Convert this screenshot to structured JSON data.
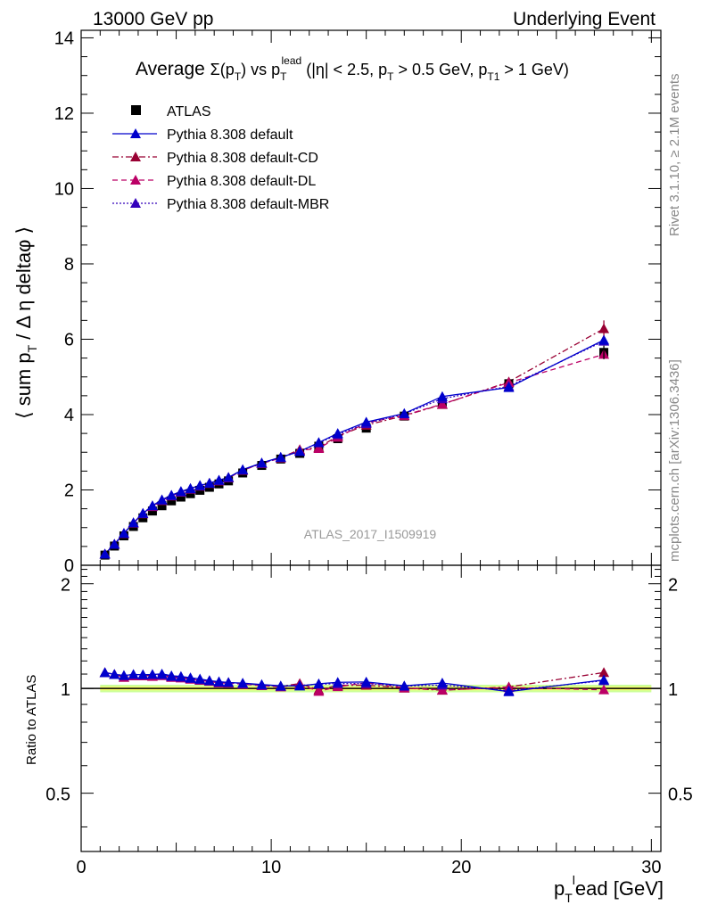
{
  "header": {
    "left": "13000 GeV pp",
    "right": "Underlying Event"
  },
  "side_labels": {
    "rivet": "Rivet 3.1.10, ≥ 2.1M events",
    "mcplots": "mcplots.cern.ch [arXiv:1306.3436]"
  },
  "watermark": "ATLAS_2017_I1509919",
  "colors": {
    "atlas": "#000000",
    "default": "#0000cc",
    "cd": "#990033",
    "dl": "#bb0066",
    "mbr": "#3300bb",
    "band_inner": "#ffff66",
    "band_outer": "#ccff99"
  },
  "chart_data": [
    {
      "type": "scatter",
      "title": "Average Σ(pT) vs pT^lead (|η| < 2.5, pT > 0.5 GeV, pT1 > 1 GeV)",
      "title_parts": {
        "p1": "Average ",
        "p2": "Σ(p",
        "p3": "T",
        "p4": ") vs p",
        "p5": "T",
        "p6": "lead",
        "p7": " (|η| < 2.5, p",
        "p8": "T",
        "p9": " > 0.5 GeV, p",
        "p10": "T1",
        "p11": " > 1 GeV)"
      },
      "ylabel": "⟨ sum pT / Δη deltaφ ⟩",
      "ylabel_parts": {
        "a": "⟨ sum p",
        "b": "T",
        "c": " / Δ η deltaφ ⟩"
      },
      "xlim": [
        0,
        30.5
      ],
      "ylim": [
        0,
        14.2
      ],
      "yticks": [
        0,
        2,
        4,
        6,
        8,
        10,
        12,
        14
      ],
      "legend_position": "top-left",
      "x": [
        1.25,
        1.75,
        2.25,
        2.75,
        3.25,
        3.75,
        4.25,
        4.75,
        5.25,
        5.75,
        6.25,
        6.75,
        7.25,
        7.75,
        8.5,
        9.5,
        10.5,
        11.5,
        12.5,
        13.5,
        15.0,
        17.0,
        19.0,
        22.5,
        27.5
      ],
      "series": [
        {
          "name": "ATLAS",
          "key": "atlas",
          "values": [
            0.27,
            0.51,
            0.78,
            1.03,
            1.26,
            1.44,
            1.58,
            1.71,
            1.81,
            1.9,
            1.99,
            2.07,
            2.16,
            2.24,
            2.45,
            2.65,
            2.82,
            2.97,
            3.16,
            3.36,
            3.64,
            3.96,
            4.32,
            4.82,
            5.65
          ]
        },
        {
          "name": "Pythia 8.308 default",
          "key": "default",
          "values": [
            0.3,
            0.56,
            0.85,
            1.13,
            1.38,
            1.58,
            1.74,
            1.86,
            1.96,
            2.04,
            2.12,
            2.18,
            2.26,
            2.33,
            2.54,
            2.72,
            2.87,
            3.02,
            3.26,
            3.5,
            3.8,
            4.03,
            4.48,
            4.72,
            5.98
          ]
        },
        {
          "name": "Pythia 8.308 default-CD",
          "key": "cd",
          "values": [
            0.3,
            0.56,
            0.84,
            1.12,
            1.37,
            1.57,
            1.73,
            1.85,
            1.95,
            2.03,
            2.11,
            2.18,
            2.25,
            2.33,
            2.53,
            2.71,
            2.86,
            3.07,
            3.13,
            3.43,
            3.72,
            3.97,
            4.27,
            4.87,
            6.28
          ]
        },
        {
          "name": "Pythia 8.308 default-DL",
          "key": "dl",
          "values": [
            0.3,
            0.56,
            0.84,
            1.12,
            1.37,
            1.56,
            1.72,
            1.84,
            1.94,
            2.02,
            2.1,
            2.17,
            2.24,
            2.32,
            2.52,
            2.7,
            2.85,
            3.05,
            3.1,
            3.4,
            3.78,
            3.98,
            4.28,
            4.85,
            5.6
          ]
        },
        {
          "name": "Pythia 8.308 default-MBR",
          "key": "mbr",
          "values": [
            0.3,
            0.56,
            0.85,
            1.13,
            1.38,
            1.58,
            1.73,
            1.85,
            1.95,
            2.03,
            2.11,
            2.18,
            2.25,
            2.33,
            2.53,
            2.71,
            2.86,
            3.03,
            3.25,
            3.47,
            3.76,
            4.02,
            4.42,
            4.75,
            5.95
          ]
        }
      ]
    },
    {
      "type": "scatter",
      "ylabel": "Ratio to ATLAS",
      "xlabel": "p_T^lead [GeV]",
      "xlabel_parts": {
        "a": "p",
        "b": "T",
        "c": "l",
        "d": "ead [GeV]"
      },
      "xlim": [
        0,
        30.5
      ],
      "ylim": [
        0.34,
        2.26
      ],
      "yticks": [
        0.5,
        1,
        2
      ],
      "ytick_labels": [
        "0.5",
        "1",
        "2"
      ],
      "xticks": [
        0,
        10,
        20,
        30
      ],
      "xtick_labels": [
        "0",
        "10",
        "20",
        "30"
      ],
      "reference": 1,
      "series_keys": [
        "default",
        "cd",
        "dl",
        "mbr"
      ]
    }
  ]
}
